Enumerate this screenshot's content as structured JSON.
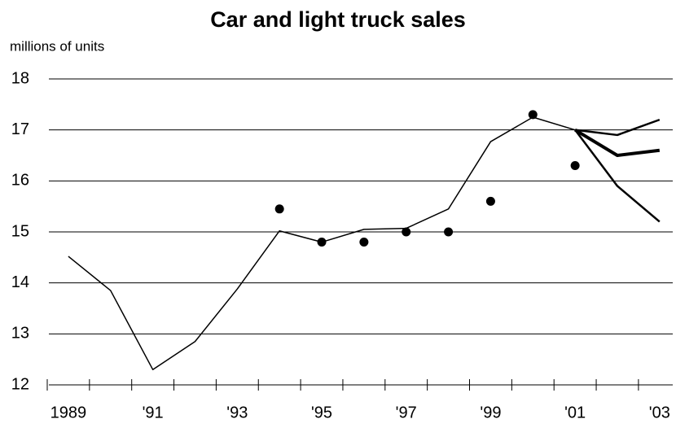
{
  "chart_data": {
    "type": "line",
    "title": "Car and light truck sales",
    "ylabel": "millions of units",
    "categories": [
      "1989",
      null,
      "'91",
      null,
      "'93",
      null,
      "'95",
      null,
      "'97",
      null,
      "'99",
      null,
      "'01",
      null,
      "'03"
    ],
    "ylim": [
      12,
      18
    ],
    "yticks": [
      12,
      13,
      14,
      15,
      16,
      17,
      18
    ],
    "grid": true,
    "series": [
      {
        "color": "#000000",
        "line_width": 1.5,
        "mode": "lines",
        "values": [
          14.52,
          13.85,
          12.3,
          12.85,
          13.88,
          15.02,
          14.8,
          15.05,
          15.07,
          15.45,
          16.77,
          17.25,
          17.0,
          null,
          null
        ]
      },
      {
        "color": "#000000",
        "line_width": 2.5,
        "mode": "lines",
        "values": [
          null,
          null,
          null,
          null,
          null,
          null,
          null,
          null,
          null,
          null,
          null,
          null,
          17.0,
          16.9,
          17.2
        ]
      },
      {
        "color": "#000000",
        "line_width": 4,
        "mode": "lines",
        "values": [
          null,
          null,
          null,
          null,
          null,
          null,
          null,
          null,
          null,
          null,
          null,
          null,
          17.0,
          16.5,
          16.6
        ]
      },
      {
        "color": "#000000",
        "line_width": 2.5,
        "mode": "lines",
        "values": [
          null,
          null,
          null,
          null,
          null,
          null,
          null,
          null,
          null,
          null,
          null,
          null,
          17.0,
          15.9,
          15.2
        ]
      },
      {
        "color": "#000000",
        "mode": "markers",
        "values": [
          null,
          null,
          null,
          null,
          null,
          15.45,
          14.8,
          14.8,
          15.0,
          15.0,
          15.6,
          17.3,
          16.3,
          null,
          null
        ]
      }
    ]
  }
}
